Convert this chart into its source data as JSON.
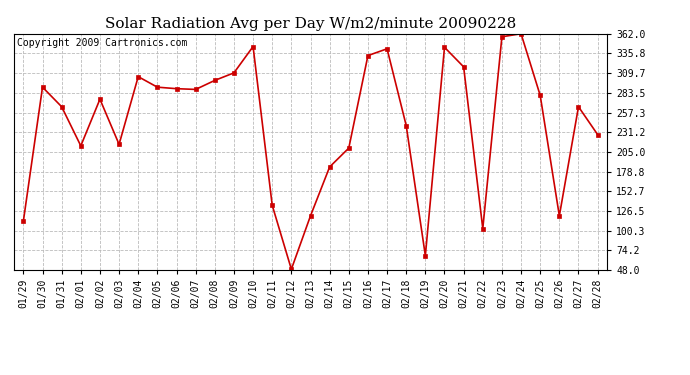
{
  "title": "Solar Radiation Avg per Day W/m2/minute 20090228",
  "copyright": "Copyright 2009 Cartronics.com",
  "x_labels": [
    "01/29",
    "01/30",
    "01/31",
    "02/01",
    "02/02",
    "02/03",
    "02/04",
    "02/05",
    "02/06",
    "02/07",
    "02/08",
    "02/09",
    "02/10",
    "02/11",
    "02/12",
    "02/13",
    "02/14",
    "02/15",
    "02/16",
    "02/17",
    "02/18",
    "02/19",
    "02/20",
    "02/21",
    "02/22",
    "02/23",
    "02/24",
    "02/25",
    "02/26",
    "02/27",
    "02/28"
  ],
  "y_values": [
    113.0,
    291.0,
    265.0,
    213.0,
    275.0,
    215.0,
    305.0,
    291.0,
    289.0,
    288.0,
    300.0,
    310.0,
    345.0,
    134.0,
    49.0,
    120.0,
    185.0,
    210.0,
    333.0,
    342.0,
    240.0,
    67.0,
    344.0,
    318.0,
    103.0,
    358.0,
    362.0,
    280.0,
    120.0,
    265.0,
    228.0
  ],
  "line_color": "#cc0000",
  "marker_color": "#cc0000",
  "bg_color": "#ffffff",
  "grid_color": "#bbbbbb",
  "y_ticks": [
    48.0,
    74.2,
    100.3,
    126.5,
    152.7,
    178.8,
    205.0,
    231.2,
    257.3,
    283.5,
    309.7,
    335.8,
    362.0
  ],
  "y_min": 48.0,
  "y_max": 362.0,
  "title_fontsize": 11,
  "copyright_fontsize": 7,
  "tick_fontsize": 7
}
